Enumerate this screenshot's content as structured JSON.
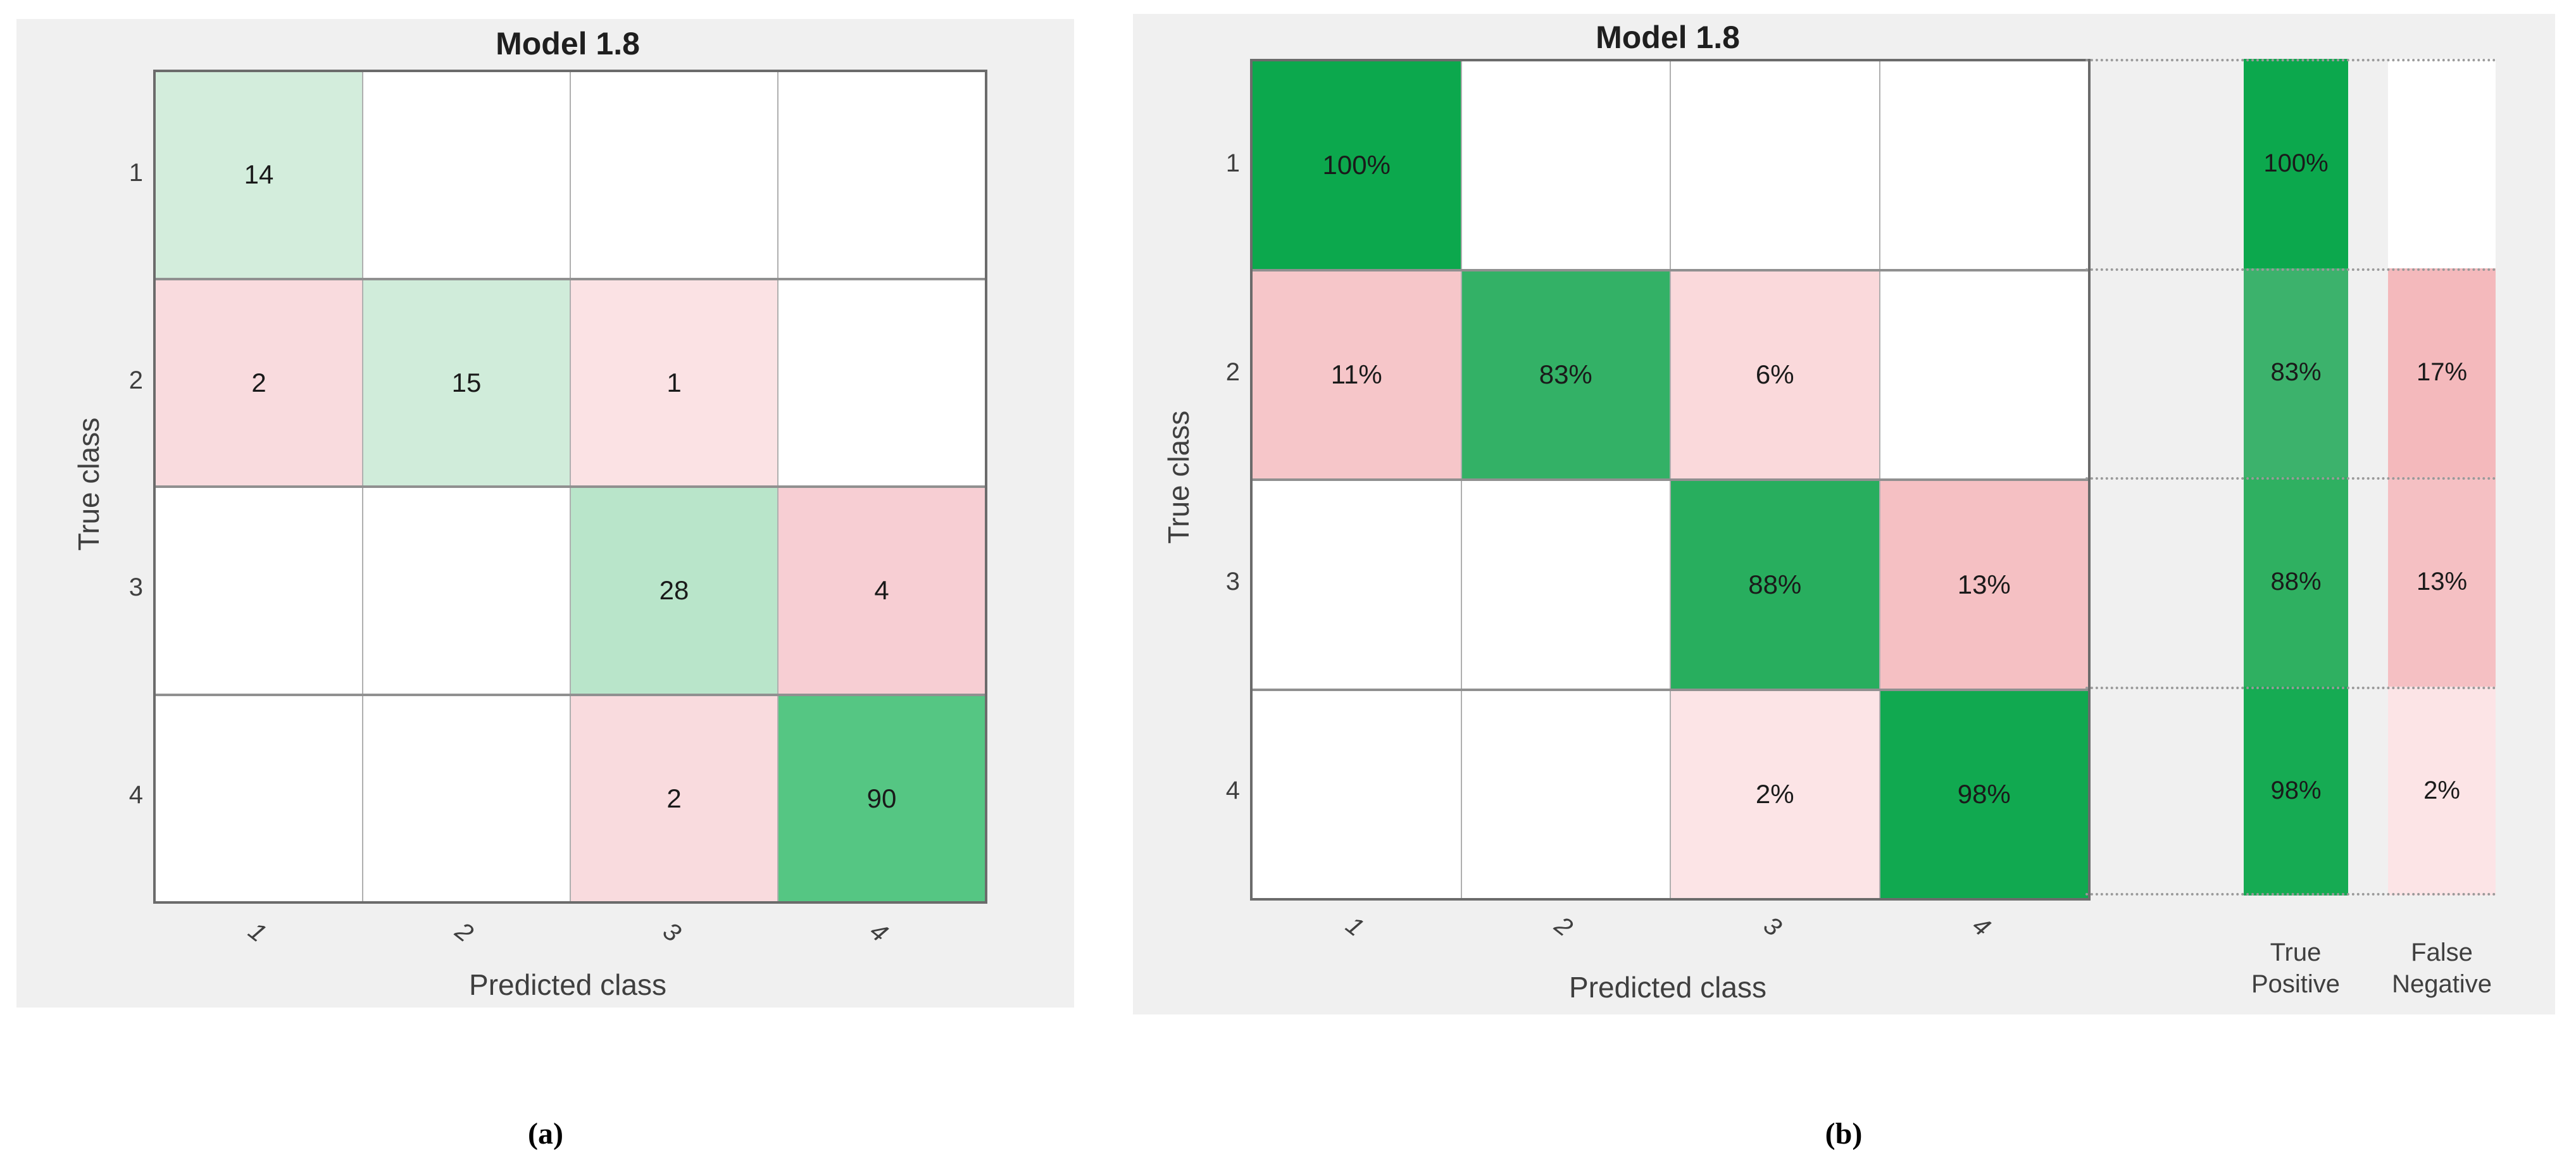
{
  "captions": {
    "a": "(a)",
    "b": "(b)"
  },
  "panel_a": {
    "title": "Model 1.8",
    "xlabel": "Predicted class",
    "ylabel": "True class",
    "row_ticks": [
      "1",
      "2",
      "3",
      "4"
    ],
    "col_ticks": [
      "1",
      "2",
      "3",
      "4"
    ],
    "cells": [
      [
        {
          "v": "14",
          "c": "#D3EDDC"
        },
        {
          "v": "",
          "c": "#FFFFFF"
        },
        {
          "v": "",
          "c": "#FFFFFF"
        },
        {
          "v": "",
          "c": "#FFFFFF"
        }
      ],
      [
        {
          "v": "2",
          "c": "#F9DBDE"
        },
        {
          "v": "15",
          "c": "#D0ECDA"
        },
        {
          "v": "1",
          "c": "#FBE2E4"
        },
        {
          "v": "",
          "c": "#FFFFFF"
        }
      ],
      [
        {
          "v": "",
          "c": "#FFFFFF"
        },
        {
          "v": "",
          "c": "#FFFFFF"
        },
        {
          "v": "28",
          "c": "#B9E5CA"
        },
        {
          "v": "4",
          "c": "#F7CED3"
        }
      ],
      [
        {
          "v": "",
          "c": "#FFFFFF"
        },
        {
          "v": "",
          "c": "#FFFFFF"
        },
        {
          "v": "2",
          "c": "#F9DBDE"
        },
        {
          "v": "90",
          "c": "#55C683"
        }
      ]
    ]
  },
  "panel_b": {
    "title": "Model 1.8",
    "xlabel": "Predicted class",
    "ylabel": "True class",
    "row_ticks": [
      "1",
      "2",
      "3",
      "4"
    ],
    "col_ticks": [
      "1",
      "2",
      "3",
      "4"
    ],
    "cells": [
      [
        {
          "v": "100%",
          "c": "#0CA84D"
        },
        {
          "v": "",
          "c": "#FFFFFF"
        },
        {
          "v": "",
          "c": "#FFFFFF"
        },
        {
          "v": "",
          "c": "#FFFFFF"
        }
      ],
      [
        {
          "v": "11%",
          "c": "#F6C6C9"
        },
        {
          "v": "83%",
          "c": "#33B166"
        },
        {
          "v": "6%",
          "c": "#FAD9DB"
        },
        {
          "v": "",
          "c": "#FFFFFF"
        }
      ],
      [
        {
          "v": "",
          "c": "#FFFFFF"
        },
        {
          "v": "",
          "c": "#FFFFFF"
        },
        {
          "v": "88%",
          "c": "#28AE5E"
        },
        {
          "v": "13%",
          "c": "#F5C0C3"
        }
      ],
      [
        {
          "v": "",
          "c": "#FFFFFF"
        },
        {
          "v": "",
          "c": "#FFFFFF"
        },
        {
          "v": "2%",
          "c": "#FCE4E6"
        },
        {
          "v": "98%",
          "c": "#11A950"
        }
      ]
    ],
    "summary": {
      "tp_line1": "True",
      "tp_line2": "Positive",
      "fn_line1": "False",
      "fn_line2": "Negative",
      "tp_cells": [
        {
          "v": "100%",
          "c": "#0CA84D"
        },
        {
          "v": "83%",
          "c": "#3CB26C"
        },
        {
          "v": "88%",
          "c": "#2FB061"
        },
        {
          "v": "98%",
          "c": "#16AB53"
        }
      ],
      "fn_cells": [
        {
          "v": "",
          "c": "#FFFFFF"
        },
        {
          "v": "17%",
          "c": "#F4B9BC"
        },
        {
          "v": "13%",
          "c": "#F5C0C3"
        },
        {
          "v": "2%",
          "c": "#FCE4E6"
        }
      ]
    }
  },
  "chart_data": [
    {
      "type": "heatmap",
      "subtype": "confusion-matrix-counts",
      "title": "Model 1.8",
      "xlabel": "Predicted class",
      "ylabel": "True class",
      "x": [
        "1",
        "2",
        "3",
        "4"
      ],
      "y": [
        "1",
        "2",
        "3",
        "4"
      ],
      "values": [
        [
          14,
          null,
          null,
          null
        ],
        [
          2,
          15,
          1,
          null
        ],
        [
          null,
          null,
          28,
          4
        ],
        [
          null,
          null,
          2,
          90
        ]
      ],
      "caption": "(a)",
      "legend_position": "none",
      "grid": true,
      "diagonal_color": "#0CA84D",
      "offdiagonal_color": "#F4B9BC"
    },
    {
      "type": "heatmap",
      "subtype": "confusion-matrix-row-normalized",
      "title": "Model 1.8",
      "xlabel": "Predicted class",
      "ylabel": "True class",
      "x": [
        "1",
        "2",
        "3",
        "4"
      ],
      "y": [
        "1",
        "2",
        "3",
        "4"
      ],
      "values_percent": [
        [
          100,
          null,
          null,
          null
        ],
        [
          11,
          83,
          6,
          null
        ],
        [
          null,
          null,
          88,
          13
        ],
        [
          null,
          null,
          2,
          98
        ]
      ],
      "row_summary": {
        "true_positive_percent": [
          100,
          83,
          88,
          98
        ],
        "false_negative_percent": [
          null,
          17,
          13,
          2
        ],
        "tp_label": "True Positive",
        "fn_label": "False Negative"
      },
      "caption": "(b)",
      "legend_position": "none",
      "grid": true,
      "diagonal_color": "#0CA84D",
      "offdiagonal_color": "#F4B9BC"
    }
  ]
}
